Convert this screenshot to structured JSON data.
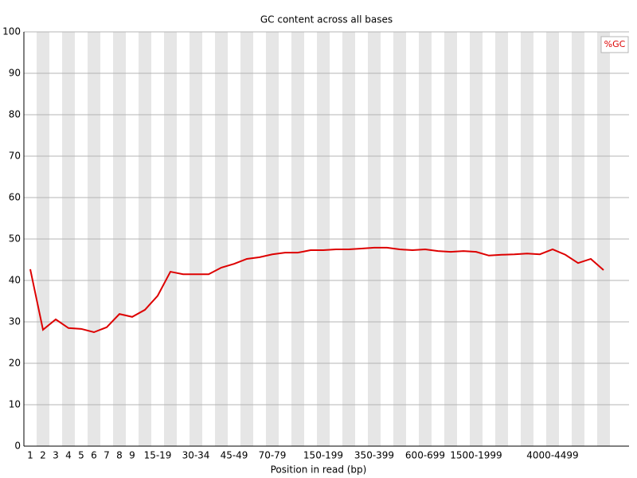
{
  "chart_data": {
    "type": "line",
    "title": "GC content across all bases",
    "x_label": "Position in read (bp)",
    "categories": [
      "1",
      "2",
      "3",
      "4",
      "5",
      "6",
      "7",
      "8",
      "9",
      null,
      "15-19",
      null,
      null,
      "30-34",
      null,
      null,
      "45-49",
      null,
      null,
      "70-79",
      null,
      null,
      null,
      "150-199",
      null,
      null,
      null,
      "350-399",
      null,
      null,
      null,
      "600-699",
      null,
      null,
      null,
      "1500-1999",
      null,
      null,
      null,
      null,
      null,
      "4000-4499",
      null,
      null,
      null,
      null
    ],
    "series": [
      {
        "name": "%GC",
        "color": "#dd0000",
        "values": [
          42.7,
          28.1,
          30.6,
          28.5,
          28.3,
          27.5,
          28.7,
          31.9,
          31.2,
          32.9,
          36.3,
          42.1,
          41.5,
          41.5,
          41.5,
          43.1,
          44.0,
          45.2,
          45.6,
          46.3,
          46.7,
          46.7,
          47.3,
          47.3,
          47.5,
          47.5,
          47.7,
          47.9,
          47.9,
          47.5,
          47.3,
          47.5,
          47.1,
          46.9,
          47.1,
          46.9,
          46.0,
          46.2,
          46.3,
          46.5,
          46.3,
          47.5,
          46.2,
          44.2,
          45.2,
          42.5
        ]
      }
    ],
    "ylim": [
      0,
      100
    ],
    "yticks": [
      0,
      10,
      20,
      30,
      40,
      50,
      60,
      70,
      80,
      90,
      100
    ],
    "grid": true,
    "stripes": true,
    "legend": "top-right"
  }
}
